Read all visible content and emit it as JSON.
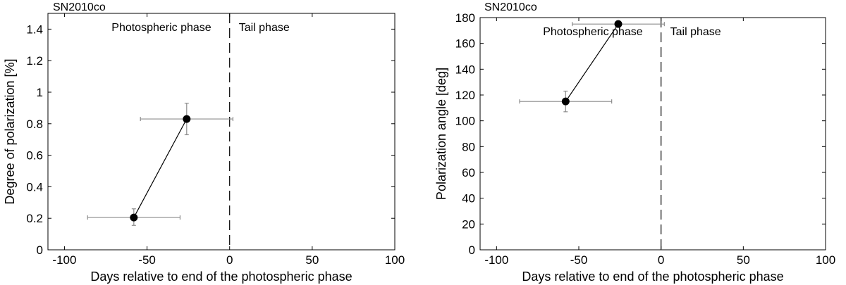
{
  "chart_data": [
    {
      "type": "scatter",
      "title": "SN2010co",
      "xlabel": "Days relative to end of the photospheric phase",
      "ylabel": "Degree of polarization [%]",
      "xlim": [
        -110,
        100
      ],
      "ylim": [
        0,
        1.5
      ],
      "xticks": [
        -100,
        -50,
        0,
        50,
        100
      ],
      "xtick_labels": [
        "-100",
        "-50",
        "0",
        "50",
        "100"
      ],
      "yticks": [
        0,
        0.2,
        0.4,
        0.6,
        0.8,
        1.0,
        1.2,
        1.4
      ],
      "ytick_labels": [
        "0",
        "0.2",
        "0.4",
        "0.6",
        "0.8",
        "1",
        "1.2",
        "1.4"
      ],
      "grid": false,
      "divider_x": 0,
      "annotations": [
        "Photospheric phase",
        "Tail phase"
      ],
      "series": [
        {
          "points": [
            {
              "x": -58,
              "y": 0.205,
              "xerr_low": -86,
              "xerr_high": -30,
              "yerr_low": 0.155,
              "yerr_high": 0.26
            },
            {
              "x": -26,
              "y": 0.83,
              "xerr_low": -54,
              "xerr_high": 2,
              "yerr_low": 0.73,
              "yerr_high": 0.93
            }
          ]
        }
      ]
    },
    {
      "type": "scatter",
      "title": "SN2010co",
      "xlabel": "Days relative to end of the photospheric phase",
      "ylabel": "Polarization angle [deg]",
      "xlim": [
        -110,
        100
      ],
      "ylim": [
        0,
        180
      ],
      "xticks": [
        -100,
        -50,
        0,
        50,
        100
      ],
      "xtick_labels": [
        "-100",
        "-50",
        "0",
        "50",
        "100"
      ],
      "yticks": [
        0,
        20,
        40,
        60,
        80,
        100,
        120,
        140,
        160,
        180
      ],
      "ytick_labels": [
        "0",
        "20",
        "40",
        "60",
        "80",
        "100",
        "120",
        "140",
        "160",
        "180"
      ],
      "grid": false,
      "divider_x": 0,
      "annotations": [
        "Photospheric phase",
        "Tail phase"
      ],
      "series": [
        {
          "points": [
            {
              "x": -58,
              "y": 115,
              "xerr_low": -86,
              "xerr_high": -30,
              "yerr_low": 107,
              "yerr_high": 123
            },
            {
              "x": -26,
              "y": 175,
              "xerr_low": -54,
              "xerr_high": 2,
              "yerr_low": 173,
              "yerr_high": 177
            }
          ]
        }
      ]
    }
  ]
}
